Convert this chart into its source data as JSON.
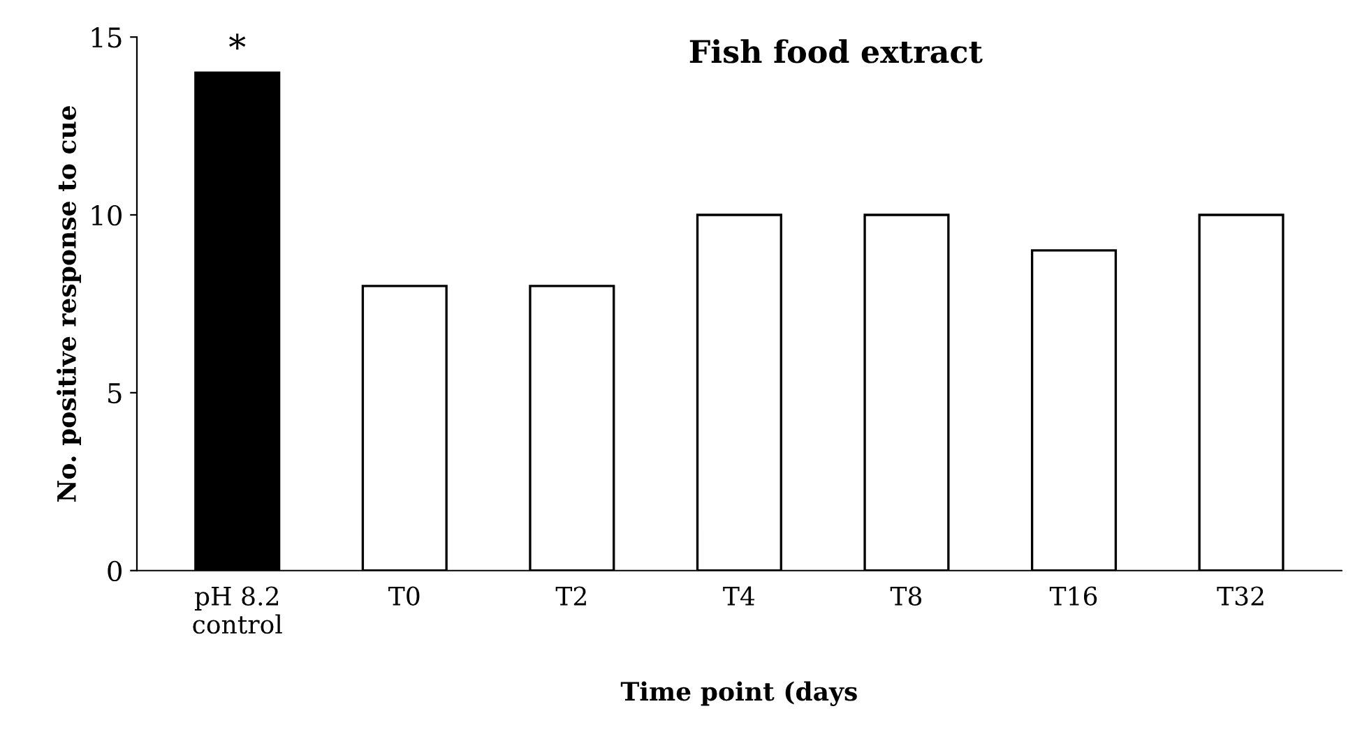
{
  "chart_data": {
    "type": "bar",
    "title": "Fish food extract",
    "xlabel": "Time point (days",
    "ylabel": "No. positive response to cue",
    "categories": [
      "pH 8.2\ncontrol",
      "T0",
      "T2",
      "T4",
      "T8",
      "T16",
      "T32"
    ],
    "values": [
      14,
      8,
      8,
      10,
      10,
      9,
      10
    ],
    "colors": [
      "#000000",
      "#ffffff",
      "#ffffff",
      "#ffffff",
      "#ffffff",
      "#ffffff",
      "#ffffff"
    ],
    "ylim": [
      0,
      15
    ],
    "yticks": [
      0,
      5,
      10,
      15
    ],
    "grid": false,
    "legend": false,
    "annotations": [
      {
        "text": "*",
        "x": "pH 8.2\ncontrol",
        "y": 14
      }
    ]
  }
}
